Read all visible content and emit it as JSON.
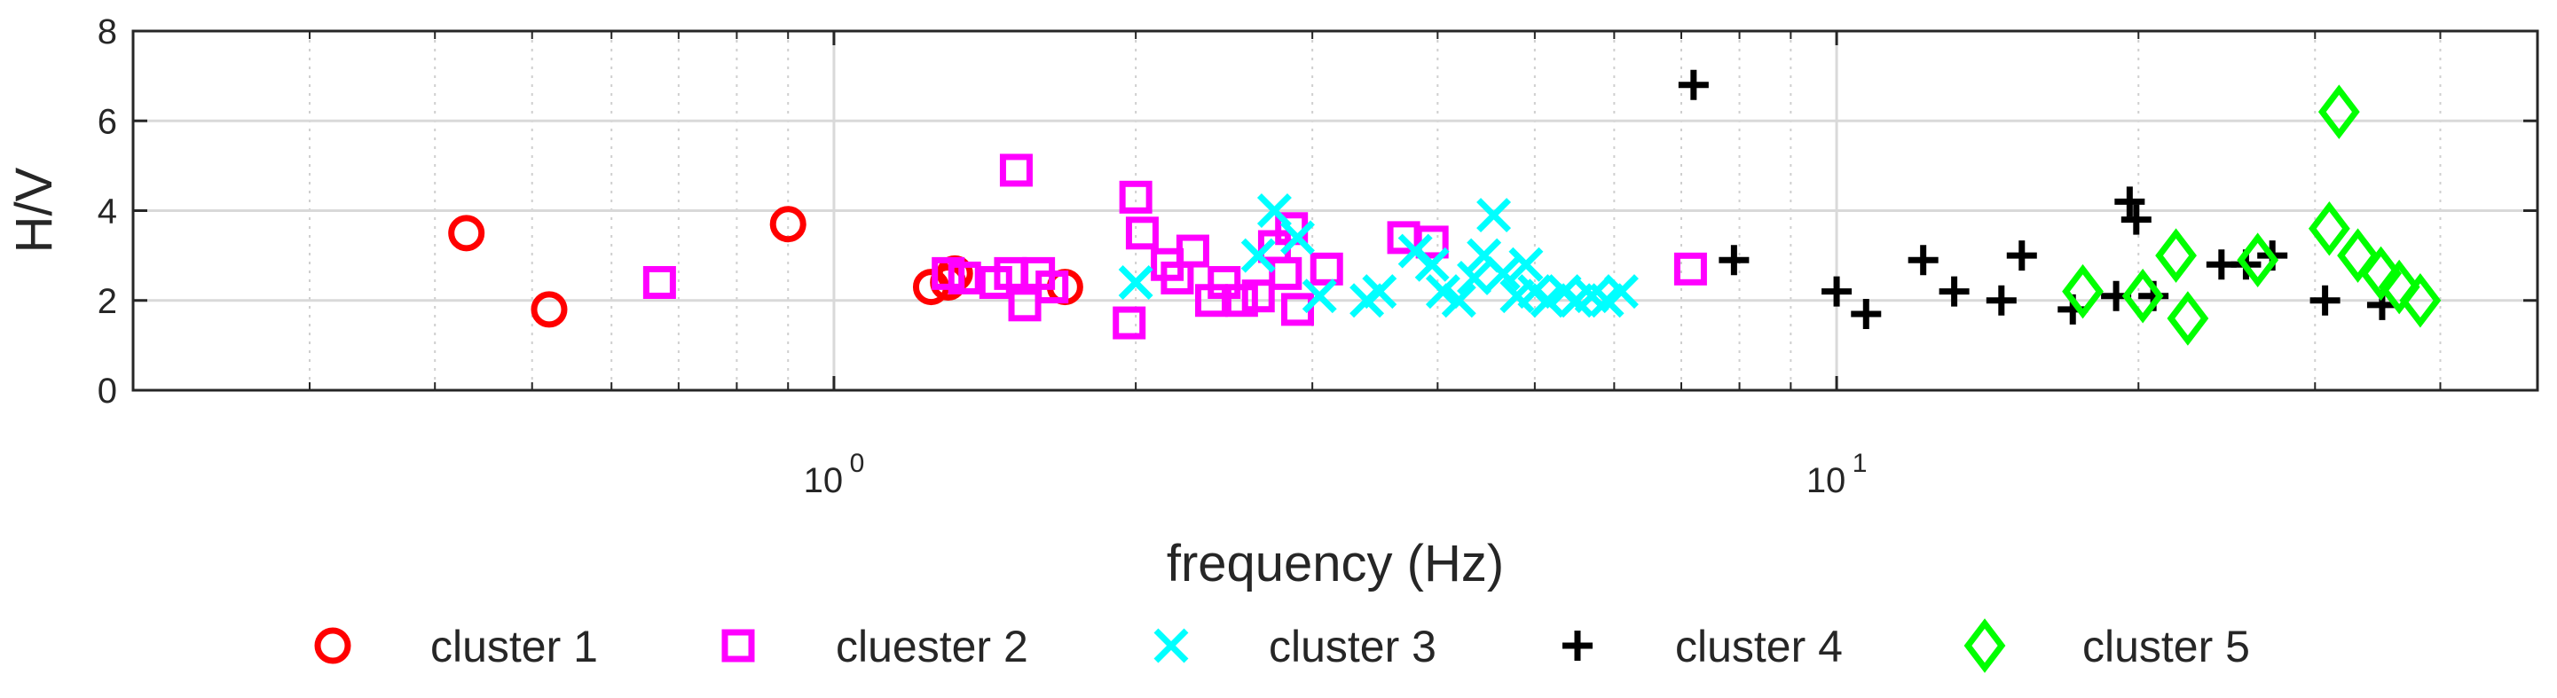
{
  "chart_data": {
    "type": "scatter",
    "title": "",
    "xlabel": "frequency (Hz)",
    "ylabel": "H/V",
    "xscale": "log",
    "xlim": [
      0.2,
      50
    ],
    "ylim": [
      0,
      8
    ],
    "yticks": [
      "0",
      "2",
      "4",
      "6",
      "8"
    ],
    "xticks": [
      {
        "value": 1,
        "base": "10",
        "exp": "0"
      },
      {
        "value": 10,
        "base": "10",
        "exp": "1"
      }
    ],
    "grid": true,
    "legend_position": "bottom",
    "series": [
      {
        "name": "cluster 1",
        "marker": "circle",
        "color": "#ff0000",
        "points": [
          [
            0.43,
            3.5
          ],
          [
            0.52,
            1.8
          ],
          [
            0.9,
            3.7
          ],
          [
            1.25,
            2.3
          ],
          [
            1.3,
            2.4
          ],
          [
            1.32,
            2.6
          ],
          [
            1.7,
            2.3
          ]
        ]
      },
      {
        "name": "cluester 2",
        "marker": "square",
        "color": "#ff00ff",
        "points": [
          [
            0.67,
            2.4
          ],
          [
            1.3,
            2.6
          ],
          [
            1.35,
            2.5
          ],
          [
            1.45,
            2.4
          ],
          [
            1.5,
            2.6
          ],
          [
            1.52,
            4.9
          ],
          [
            1.55,
            1.9
          ],
          [
            1.6,
            2.6
          ],
          [
            1.65,
            2.3
          ],
          [
            1.97,
            1.5
          ],
          [
            2.0,
            4.3
          ],
          [
            2.03,
            3.5
          ],
          [
            2.15,
            2.8
          ],
          [
            2.2,
            2.5
          ],
          [
            2.28,
            3.1
          ],
          [
            2.38,
            2.0
          ],
          [
            2.45,
            2.4
          ],
          [
            2.55,
            2.0
          ],
          [
            2.65,
            2.1
          ],
          [
            2.75,
            3.2
          ],
          [
            2.82,
            2.6
          ],
          [
            2.86,
            3.6
          ],
          [
            2.9,
            1.8
          ],
          [
            3.1,
            2.7
          ],
          [
            3.7,
            3.4
          ],
          [
            3.95,
            3.3
          ],
          [
            7.15,
            2.7
          ]
        ]
      },
      {
        "name": "cluster 3",
        "marker": "x",
        "color": "#00ffff",
        "points": [
          [
            2.0,
            2.4
          ],
          [
            2.65,
            3.0
          ],
          [
            2.75,
            4.0
          ],
          [
            2.9,
            3.4
          ],
          [
            3.05,
            2.1
          ],
          [
            3.4,
            2.0
          ],
          [
            3.5,
            2.2
          ],
          [
            3.8,
            3.1
          ],
          [
            3.95,
            2.8
          ],
          [
            4.05,
            2.2
          ],
          [
            4.2,
            2.0
          ],
          [
            4.35,
            2.5
          ],
          [
            4.45,
            3.0
          ],
          [
            4.55,
            3.9
          ],
          [
            4.65,
            2.6
          ],
          [
            4.8,
            2.1
          ],
          [
            4.9,
            2.8
          ],
          [
            5.0,
            2.2
          ],
          [
            5.15,
            2.0
          ],
          [
            5.35,
            2.2
          ],
          [
            5.5,
            2.0
          ],
          [
            5.7,
            2.1
          ],
          [
            5.9,
            2.0
          ],
          [
            6.1,
            2.2
          ]
        ]
      },
      {
        "name": "cluster 4",
        "marker": "plus",
        "color": "#000000",
        "points": [
          [
            7.2,
            6.8
          ],
          [
            7.9,
            2.9
          ],
          [
            10.0,
            2.2
          ],
          [
            10.7,
            1.7
          ],
          [
            12.2,
            2.9
          ],
          [
            13.1,
            2.2
          ],
          [
            14.6,
            2.0
          ],
          [
            15.3,
            3.0
          ],
          [
            17.2,
            1.8
          ],
          [
            19.0,
            2.1
          ],
          [
            19.6,
            4.2
          ],
          [
            19.9,
            3.8
          ],
          [
            20.7,
            2.1
          ],
          [
            24.2,
            2.8
          ],
          [
            25.6,
            2.8
          ],
          [
            27.2,
            3.0
          ],
          [
            30.7,
            2.0
          ],
          [
            35.0,
            1.9
          ]
        ]
      },
      {
        "name": "cluster 5",
        "marker": "diamond",
        "color": "#00ff00",
        "points": [
          [
            17.6,
            2.2
          ],
          [
            20.2,
            2.1
          ],
          [
            21.8,
            3.0
          ],
          [
            22.4,
            1.6
          ],
          [
            26.3,
            2.9
          ],
          [
            31.0,
            3.6
          ],
          [
            31.7,
            6.2
          ],
          [
            33.1,
            3.0
          ],
          [
            34.9,
            2.6
          ],
          [
            36.4,
            2.3
          ],
          [
            38.2,
            2.0
          ]
        ]
      }
    ]
  }
}
